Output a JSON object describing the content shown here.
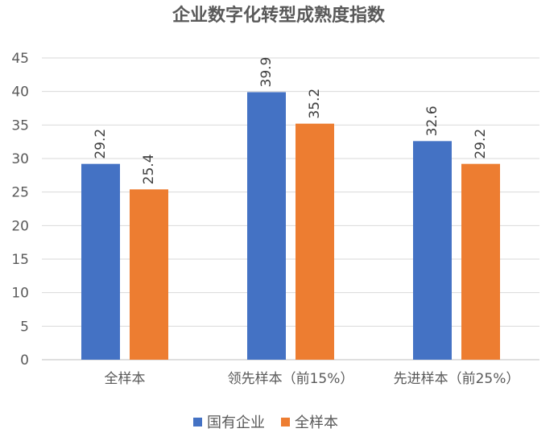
{
  "chart_data": {
    "type": "bar",
    "title": "企业数字化转型成熟度指数",
    "categories": [
      "全样本",
      "领先样本（前15%）",
      "先进样本（前25%）"
    ],
    "series": [
      {
        "name": "国有企业",
        "values": [
          29.2,
          39.9,
          32.6
        ],
        "color": "#4472C4"
      },
      {
        "name": "全样本",
        "values": [
          25.4,
          35.2,
          29.2
        ],
        "color": "#ED7D31"
      }
    ],
    "ylim": [
      0,
      45
    ],
    "yticks": [
      0,
      5,
      10,
      15,
      20,
      25,
      30,
      35,
      40,
      45
    ],
    "grid": true,
    "legend": "bottom",
    "xlabel": "",
    "ylabel": ""
  }
}
